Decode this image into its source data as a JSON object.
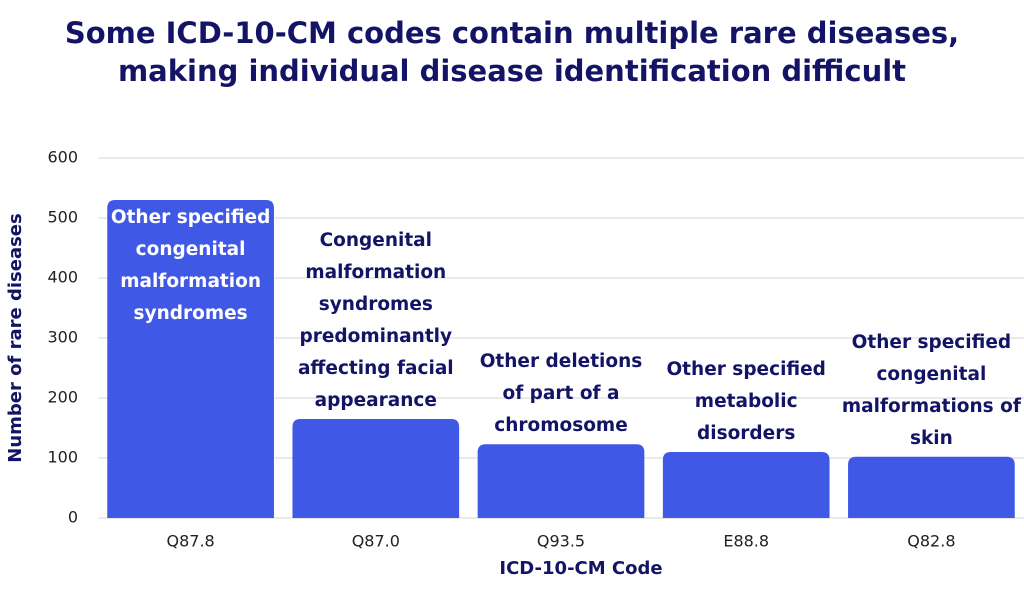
{
  "chart_data": {
    "type": "bar",
    "title": "Some ICD-10-CM codes contain multiple rare diseases, making individual disease identification difficult",
    "x_label": "ICD-10-CM Code",
    "y_label": "Number of rare diseases",
    "categories": [
      "Q87.8",
      "Q87.0",
      "Q93.5",
      "E88.8",
      "Q82.8"
    ],
    "values": [
      530,
      165,
      123,
      110,
      102
    ],
    "annotations": [
      "Other specified congenital malformation syndromes",
      "Congenital malformation syndromes predominantly affecting facial appearance",
      "Other deletions of part of a chromosome",
      "Other specified metabolic disorders",
      "Other specified congenital malformations of skin"
    ],
    "color": "#4058e6",
    "ylim": [
      0,
      600
    ],
    "yticks": [
      0,
      100,
      200,
      300,
      400,
      500,
      600
    ],
    "grid": true
  }
}
